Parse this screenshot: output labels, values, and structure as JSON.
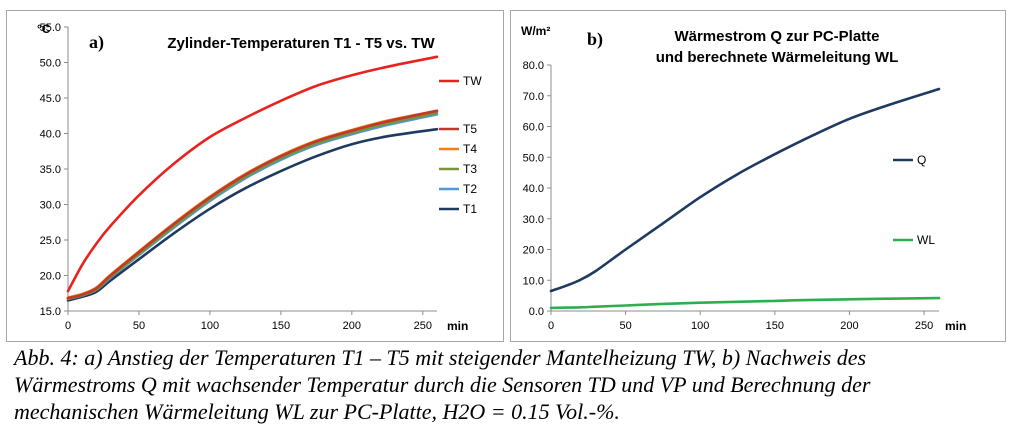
{
  "chart_data": [
    {
      "type": "line",
      "panel_letter": "a)",
      "title": "Zylinder-Temperaturen T1 - T5 vs. TW",
      "ylabel": "°C",
      "xlabel": "min",
      "xlim": [
        0,
        260
      ],
      "ylim": [
        15,
        55
      ],
      "xticks": [
        "0",
        "50",
        "100",
        "150",
        "200",
        "250"
      ],
      "yticks": [
        "15.0",
        "20.0",
        "25.0",
        "30.0",
        "35.0",
        "40.0",
        "45.0",
        "50.0",
        "55.0"
      ],
      "grid": false,
      "legend_position": "right",
      "x": [
        0,
        10,
        20,
        30,
        50,
        75,
        100,
        125,
        150,
        175,
        200,
        225,
        260
      ],
      "series": [
        {
          "name": "TW",
          "color": "#e8231f",
          "values": [
            17.8,
            21.5,
            24.5,
            27.0,
            31.3,
            35.8,
            39.5,
            42.2,
            44.6,
            46.7,
            48.2,
            49.4,
            50.8
          ]
        },
        {
          "name": "T5",
          "color": "#c0392b",
          "values": [
            16.8,
            17.3,
            18.2,
            20.0,
            23.3,
            27.3,
            31.0,
            34.2,
            36.8,
            38.9,
            40.4,
            41.7,
            43.2
          ]
        },
        {
          "name": "T4",
          "color": "#f07f1a",
          "values": [
            16.9,
            17.4,
            18.3,
            20.1,
            23.4,
            27.4,
            31.1,
            34.3,
            36.9,
            39.0,
            40.5,
            41.8,
            43.2
          ]
        },
        {
          "name": "T3",
          "color": "#77933c",
          "values": [
            16.7,
            17.2,
            18.0,
            19.8,
            23.0,
            27.0,
            30.7,
            33.9,
            36.5,
            38.6,
            40.1,
            41.4,
            42.9
          ]
        },
        {
          "name": "T2",
          "color": "#4f97d8",
          "values": [
            16.7,
            17.2,
            18.0,
            19.7,
            22.9,
            26.8,
            30.5,
            33.7,
            36.3,
            38.4,
            39.9,
            41.2,
            42.7
          ]
        },
        {
          "name": "T1",
          "color": "#1f3a60",
          "values": [
            16.5,
            17.0,
            17.7,
            19.3,
            22.3,
            26.0,
            29.4,
            32.3,
            34.7,
            36.8,
            38.5,
            39.6,
            40.6
          ]
        }
      ]
    },
    {
      "type": "line",
      "panel_letter": "b)",
      "title_lines": [
        "Wärmestrom Q zur PC-Platte",
        "und berechnete Wärmeleitung WL"
      ],
      "ylabel": "W/m²",
      "xlabel": "min",
      "xlim": [
        0,
        260
      ],
      "ylim": [
        0,
        80
      ],
      "xticks": [
        "0",
        "50",
        "100",
        "150",
        "200",
        "250"
      ],
      "yticks": [
        "0.0",
        "10.0",
        "20.0",
        "30.0",
        "40.0",
        "50.0",
        "60.0",
        "70.0",
        "80.0"
      ],
      "grid": false,
      "legend_position": "right",
      "x": [
        0,
        10,
        20,
        30,
        50,
        75,
        100,
        125,
        150,
        175,
        200,
        225,
        260
      ],
      "series": [
        {
          "name": "Q",
          "color": "#1f3a60",
          "values": [
            6.5,
            8.2,
            10.2,
            13.0,
            20.0,
            28.5,
            37.0,
            44.5,
            51.0,
            57.0,
            62.5,
            66.8,
            72.2
          ]
        },
        {
          "name": "WL",
          "color": "#2eae4f",
          "values": [
            1.0,
            1.1,
            1.2,
            1.4,
            1.8,
            2.3,
            2.7,
            3.0,
            3.3,
            3.6,
            3.8,
            4.0,
            4.2
          ]
        }
      ]
    }
  ],
  "caption": {
    "line1": "Abb. 4: a) Anstieg der Temperaturen T1 – T5 mit steigender Mantelheizung TW, b) Nachweis des",
    "line2": "Wärmestroms Q mit wachsender Temperatur durch die Sensoren TD und VP und Berechnung der",
    "line3": "mechanischen Wärmeleitung WL zur PC-Platte, H2O = 0.15 Vol.-%."
  }
}
